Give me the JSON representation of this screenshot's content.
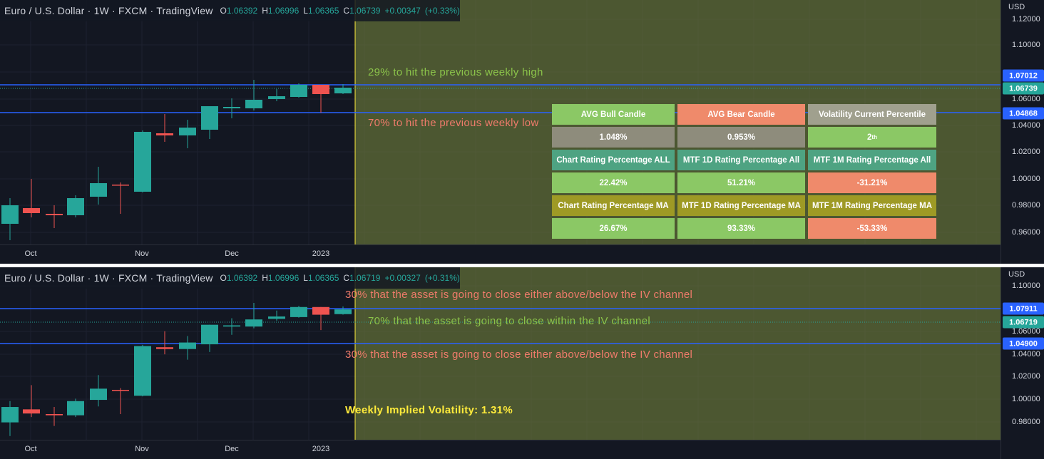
{
  "top_pane": {
    "title": "Euro / U.S. Dollar · 1W · FXCM · TradingView",
    "ohlc": {
      "open_label": "O",
      "open": "1.06392",
      "high_label": "H",
      "high": "1.06996",
      "low_label": "L",
      "low": "1.06365",
      "close_label": "C",
      "close": "1.06739",
      "change": "+0.00347",
      "change_pct": "(+0.33%)"
    },
    "axis_unit": "USD",
    "price_ticks": [
      "1.12000",
      "1.10000",
      "1.06000",
      "1.04000",
      "1.02000",
      "1.00000",
      "0.98000",
      "0.96000"
    ],
    "price_tags": [
      "1.07012",
      "1.06739",
      "1.04868"
    ],
    "time_labels": [
      "Oct",
      "Nov",
      "Dec",
      "2023"
    ],
    "texts": {
      "high_prob": "29% to hit the previous weekly high",
      "low_prob": "70% to hit the previous weekly low"
    },
    "table": [
      [
        "AVG Bull Candle",
        "AVG Bear Candle",
        "Volatility Current Percentile"
      ],
      [
        "1.048%",
        "0.953%",
        "2"
      ],
      [
        "Chart Rating Percentage ALL",
        "MTF 1D Rating Percentage All",
        "MTF 1M Rating Percentage All"
      ],
      [
        "22.42%",
        "51.21%",
        "-31.21%"
      ],
      [
        "Chart Rating Percentage MA",
        "MTF 1D Rating Percentage MA",
        "MTF 1M Rating Percentage MA"
      ],
      [
        "26.67%",
        "93.33%",
        "-53.33%"
      ]
    ],
    "percentile_suffix": "th",
    "table_colors": [
      [
        "#8bc865",
        "#ef8a6b",
        "#a0a08e"
      ],
      [
        "#8e8c7c",
        "#8e8c7c",
        "#8bc865"
      ],
      [
        "#4ea382",
        "#4ea382",
        "#4ea382"
      ],
      [
        "#8bc865",
        "#8bc865",
        "#ef8a6b"
      ],
      [
        "#9e9a25",
        "#9e9a25",
        "#9e9a25"
      ],
      [
        "#8bc865",
        "#8bc865",
        "#ef8a6b"
      ]
    ]
  },
  "bottom_pane": {
    "title": "Euro / U.S. Dollar · 1W · FXCM · TradingView",
    "ohlc": {
      "open_label": "O",
      "open": "1.06392",
      "high_label": "H",
      "high": "1.06996",
      "low_label": "L",
      "low": "1.06365",
      "close_label": "C",
      "close": "1.06719",
      "change": "+0.00327",
      "change_pct": "(+0.31%)"
    },
    "axis_unit": "USD",
    "price_ticks": [
      "1.10000",
      "1.06000",
      "1.04000",
      "1.02000",
      "1.00000",
      "0.98000"
    ],
    "price_tags": [
      "1.07911",
      "1.06719",
      "1.04900"
    ],
    "time_labels": [
      "Oct",
      "Nov",
      "Dec",
      "2023"
    ],
    "texts": {
      "above_below_top": "30% that the asset is going to close either above/below the IV channel",
      "within": "70% that the asset is going to close within the IV channel",
      "above_below_bottom": "30% that the asset is going to close either above/below the IV channel",
      "implied_vol": "Weekly Implied Volatility: 1.31%"
    }
  },
  "colors": {
    "bull": "#26a69a",
    "bear": "#ef5350",
    "level_line": "#2962ff",
    "zone_fill": "#6b7a3a",
    "cursor_line": "#ffeb3b"
  }
}
